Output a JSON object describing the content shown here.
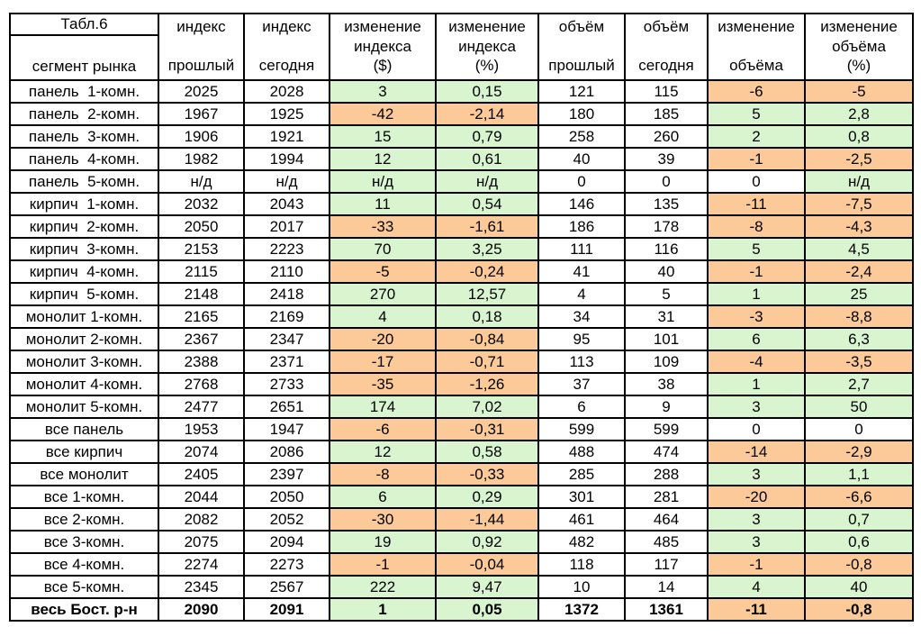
{
  "chart_data": {
    "type": "table",
    "title": "Табл.6",
    "segment_column_label": "сегмент рынка",
    "column_headers": [
      {
        "id": "index-prev",
        "lines": [
          "индекс",
          "прошлый"
        ]
      },
      {
        "id": "index-today",
        "lines": [
          "индекс",
          "сегодня"
        ]
      },
      {
        "id": "index-change-usd",
        "lines": [
          "изменение",
          "индекса",
          "($)"
        ]
      },
      {
        "id": "index-change-pct",
        "lines": [
          "изменение",
          "индекса",
          "(%)"
        ]
      },
      {
        "id": "volume-prev",
        "lines": [
          "объём",
          "прошлый"
        ]
      },
      {
        "id": "volume-today",
        "lines": [
          "объём",
          "сегодня"
        ]
      },
      {
        "id": "volume-change",
        "lines": [
          "изменение",
          "объёма"
        ]
      },
      {
        "id": "volume-change-pct",
        "lines": [
          "изменение",
          "объёма",
          "(%)"
        ]
      }
    ],
    "change_column_indexes": [
      2,
      3,
      6,
      7
    ],
    "colors": {
      "positive_bg": "#d8f5d0",
      "negative_bg": "#fcca98",
      "zero_bg": "#ffffff",
      "border": "#000000",
      "text": "#000000"
    },
    "no_data_text": "н/д",
    "rows": [
      {
        "label": "панель  1-комн.",
        "values": [
          "2025",
          "2028",
          "3",
          "0,15",
          "121",
          "115",
          "-6",
          "-5"
        ],
        "bold": false
      },
      {
        "label": "панель  2-комн.",
        "values": [
          "1967",
          "1925",
          "-42",
          "-2,14",
          "180",
          "185",
          "5",
          "2,8"
        ],
        "bold": false
      },
      {
        "label": "панель  3-комн.",
        "values": [
          "1906",
          "1921",
          "15",
          "0,79",
          "258",
          "260",
          "2",
          "0,8"
        ],
        "bold": false
      },
      {
        "label": "панель  4-комн.",
        "values": [
          "1982",
          "1994",
          "12",
          "0,61",
          "40",
          "39",
          "-1",
          "-2,5"
        ],
        "bold": false
      },
      {
        "label": "панель  5-комн.",
        "values": [
          "н/д",
          "н/д",
          "н/д",
          "н/д",
          "0",
          "0",
          "0",
          "н/д"
        ],
        "bold": false
      },
      {
        "label": "кирпич  1-комн.",
        "values": [
          "2032",
          "2043",
          "11",
          "0,54",
          "146",
          "135",
          "-11",
          "-7,5"
        ],
        "bold": false
      },
      {
        "label": "кирпич  2-комн.",
        "values": [
          "2050",
          "2017",
          "-33",
          "-1,61",
          "186",
          "178",
          "-8",
          "-4,3"
        ],
        "bold": false
      },
      {
        "label": "кирпич  3-комн.",
        "values": [
          "2153",
          "2223",
          "70",
          "3,25",
          "111",
          "116",
          "5",
          "4,5"
        ],
        "bold": false
      },
      {
        "label": "кирпич  4-комн.",
        "values": [
          "2115",
          "2110",
          "-5",
          "-0,24",
          "41",
          "40",
          "-1",
          "-2,4"
        ],
        "bold": false
      },
      {
        "label": "кирпич  5-комн.",
        "values": [
          "2148",
          "2418",
          "270",
          "12,57",
          "4",
          "5",
          "1",
          "25"
        ],
        "bold": false
      },
      {
        "label": "монолит 1-комн.",
        "values": [
          "2165",
          "2169",
          "4",
          "0,18",
          "34",
          "31",
          "-3",
          "-8,8"
        ],
        "bold": false
      },
      {
        "label": "монолит 2-комн.",
        "values": [
          "2367",
          "2347",
          "-20",
          "-0,84",
          "95",
          "101",
          "6",
          "6,3"
        ],
        "bold": false
      },
      {
        "label": "монолит 3-комн.",
        "values": [
          "2388",
          "2371",
          "-17",
          "-0,71",
          "113",
          "109",
          "-4",
          "-3,5"
        ],
        "bold": false
      },
      {
        "label": "монолит 4-комн.",
        "values": [
          "2768",
          "2733",
          "-35",
          "-1,26",
          "37",
          "38",
          "1",
          "2,7"
        ],
        "bold": false
      },
      {
        "label": "монолит 5-комн.",
        "values": [
          "2477",
          "2651",
          "174",
          "7,02",
          "6",
          "9",
          "3",
          "50"
        ],
        "bold": false
      },
      {
        "label": "все панель",
        "values": [
          "1953",
          "1947",
          "-6",
          "-0,31",
          "599",
          "599",
          "0",
          "0"
        ],
        "bold": false
      },
      {
        "label": "все кирпич",
        "values": [
          "2074",
          "2086",
          "12",
          "0,58",
          "488",
          "474",
          "-14",
          "-2,9"
        ],
        "bold": false
      },
      {
        "label": "все монолит",
        "values": [
          "2405",
          "2397",
          "-8",
          "-0,33",
          "285",
          "288",
          "3",
          "1,1"
        ],
        "bold": false
      },
      {
        "label": "все 1-комн.",
        "values": [
          "2044",
          "2050",
          "6",
          "0,29",
          "301",
          "281",
          "-20",
          "-6,6"
        ],
        "bold": false
      },
      {
        "label": "все 2-комн.",
        "values": [
          "2082",
          "2052",
          "-30",
          "-1,44",
          "461",
          "464",
          "3",
          "0,7"
        ],
        "bold": false
      },
      {
        "label": "все 3-комн.",
        "values": [
          "2075",
          "2094",
          "19",
          "0,92",
          "482",
          "485",
          "3",
          "0,6"
        ],
        "bold": false
      },
      {
        "label": "все 4-комн.",
        "values": [
          "2274",
          "2273",
          "-1",
          "-0,04",
          "118",
          "117",
          "-1",
          "-0,8"
        ],
        "bold": false
      },
      {
        "label": "все 5-комн.",
        "values": [
          "2345",
          "2567",
          "222",
          "9,47",
          "10",
          "14",
          "4",
          "40"
        ],
        "bold": false
      },
      {
        "label": "весь Бост. р-н",
        "values": [
          "2090",
          "2091",
          "1",
          "0,05",
          "1372",
          "1361",
          "-11",
          "-0,8"
        ],
        "bold": true
      }
    ]
  }
}
